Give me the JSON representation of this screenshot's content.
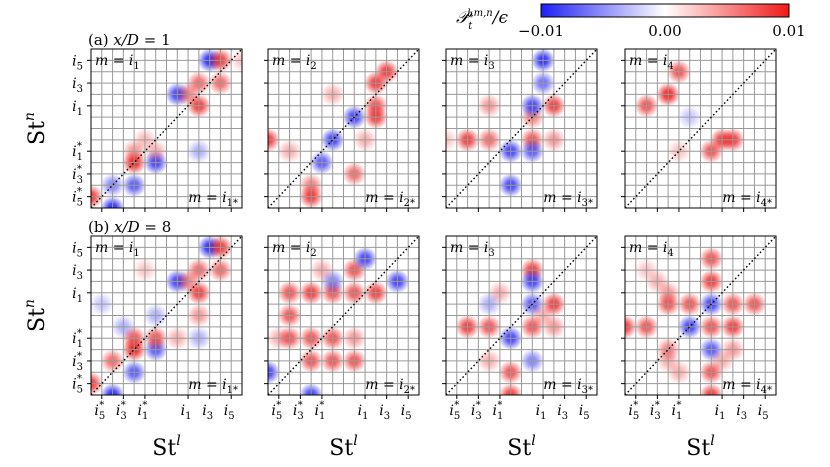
{
  "chart_data": {
    "type": "heatmap",
    "quantity_label": "𝒫",
    "quantity_sup": "l,m,n",
    "quantity_sub": "t",
    "quantity_suffix": "/ϵ",
    "colorbar": {
      "ticks": [
        "−0.01",
        "0.00",
        "0.01"
      ],
      "range": [
        -0.01,
        0.01
      ],
      "colors": {
        "negative": "#1f1ff5",
        "zero": "#ffffff",
        "positive": "#f01818"
      }
    },
    "tick_labels": [
      "i5*",
      "i3*",
      "i1*",
      "i1",
      "i3",
      "i5"
    ],
    "x_tick_main": [
      "i",
      "i",
      "i",
      "i",
      "i",
      "i"
    ],
    "x_tick_sub": [
      "5",
      "3",
      "1",
      "1",
      "3",
      "5"
    ],
    "x_tick_star": [
      true,
      true,
      true,
      false,
      false,
      false
    ],
    "y_tick_main": [
      "i",
      "i",
      "i",
      "i",
      "i",
      "i"
    ],
    "y_tick_sub": [
      "5",
      "3",
      "1",
      "1",
      "3",
      "5"
    ],
    "y_tick_star": [
      false,
      false,
      false,
      true,
      true,
      true
    ],
    "xlabel": "St",
    "xlabel_sup": "l",
    "ylabel": "St",
    "ylabel_sup": "n",
    "rows": [
      {
        "label": "(a) x/D = 1",
        "label_parts": [
          "(a) ",
          "x/D",
          " = 1"
        ],
        "panels": [
          {
            "top": "m = i",
            "top_sub": "1",
            "bottom": "m = i",
            "bottom_sub": "1*",
            "blobs": [
              [
                -3.5,
                -3,
                0.8
              ],
              [
                -2.5,
                -3.5,
                -0.9
              ],
              [
                -2.5,
                -2.5,
                -0.5
              ],
              [
                -1.5,
                -1.5,
                0.9
              ],
              [
                -1.5,
                -1,
                0.4
              ],
              [
                -1.5,
                -2.5,
                -0.7
              ],
              [
                -0.5,
                -1.5,
                -0.8
              ],
              [
                -0.5,
                -1,
                0.3
              ],
              [
                0.5,
                1.5,
                -0.8
              ],
              [
                1.5,
                1,
                0.8
              ],
              [
                1.5,
                2,
                0.6
              ],
              [
                1.5,
                -1,
                -0.3
              ],
              [
                2,
                3,
                -0.9
              ],
              [
                2.5,
                3,
                0.8
              ],
              [
                2.5,
                2,
                0.6
              ],
              [
                1,
                1.5,
                0.5
              ],
              [
                -1,
                -0.5,
                0.25
              ],
              [
                3.5,
                3,
                0.2
              ]
            ]
          },
          {
            "top": "m = i",
            "top_sub": "2",
            "bottom": "m = i",
            "bottom_sub": "2*",
            "blobs": [
              [
                -3.5,
                -0.5,
                0.8
              ],
              [
                -2.5,
                -1,
                0.3
              ],
              [
                -1.5,
                -2.5,
                0.5
              ],
              [
                -1.5,
                -3,
                0.8
              ],
              [
                -1,
                -1.5,
                -0.7
              ],
              [
                -0.5,
                -0.5,
                -0.8
              ],
              [
                0.5,
                0.5,
                -0.8
              ],
              [
                0.5,
                -2,
                0.6
              ],
              [
                1.5,
                0.5,
                0.8
              ],
              [
                1.5,
                1,
                0.7
              ],
              [
                2,
                2.5,
                0.8
              ],
              [
                1.5,
                2,
                0.8
              ],
              [
                1,
                -0.5,
                0.3
              ],
              [
                -0.5,
                1.5,
                0.3
              ]
            ]
          },
          {
            "top": "m = i",
            "top_sub": "3",
            "bottom": "m = i",
            "bottom_sub": "3*",
            "blobs": [
              [
                -2.5,
                -0.5,
                0.8
              ],
              [
                -1.5,
                -0.5,
                0.6
              ],
              [
                -0.5,
                -1,
                -0.8
              ],
              [
                -0.5,
                -2.5,
                -0.8
              ],
              [
                0.5,
                -0.5,
                0.7
              ],
              [
                0.5,
                0.5,
                0.5
              ],
              [
                0.5,
                -1,
                -0.7
              ],
              [
                1.5,
                1,
                0.8
              ],
              [
                0.5,
                1,
                -0.8
              ],
              [
                1,
                2,
                -0.6
              ],
              [
                1,
                3,
                -0.9
              ],
              [
                -1.5,
                1,
                0.4
              ],
              [
                1.5,
                -0.5,
                0.4
              ],
              [
                -3.5,
                -0.5,
                0.2
              ]
            ]
          },
          {
            "top": "m = i",
            "top_sub": "4",
            "bottom": "m = i",
            "bottom_sub": "4*",
            "blobs": [
              [
                -2.5,
                1,
                0.7
              ],
              [
                -1.5,
                1.5,
                0.9
              ],
              [
                -1,
                2.5,
                0.7
              ],
              [
                1,
                -0.5,
                0.8
              ],
              [
                1.5,
                -0.5,
                0.8
              ],
              [
                0.5,
                -1,
                0.7
              ],
              [
                -1,
                -1,
                0.2
              ],
              [
                -0.5,
                0.5,
                -0.2
              ]
            ]
          }
        ]
      },
      {
        "label": "(b) x/D = 8",
        "label_parts": [
          "(b) ",
          "x/D",
          " = 8"
        ],
        "panels": [
          {
            "top": "m = i",
            "top_sub": "1",
            "bottom": "m = i",
            "bottom_sub": "1*",
            "blobs": [
              [
                -3.5,
                -3,
                0.8
              ],
              [
                -2.5,
                -3.5,
                -0.9
              ],
              [
                -2.5,
                -2,
                0.6
              ],
              [
                -1.5,
                -1.5,
                0.9
              ],
              [
                -1.5,
                -1,
                0.7
              ],
              [
                -1.5,
                -2.5,
                -0.7
              ],
              [
                -0.5,
                -1.5,
                -0.7
              ],
              [
                -0.5,
                -1,
                0.7
              ],
              [
                0.5,
                1.5,
                -0.8
              ],
              [
                1.5,
                1,
                0.8
              ],
              [
                1.5,
                2,
                0.6
              ],
              [
                1.5,
                -1,
                -0.3
              ],
              [
                2,
                3,
                -0.9
              ],
              [
                2.5,
                3,
                0.8
              ],
              [
                2.5,
                2,
                0.6
              ],
              [
                1,
                1.5,
                0.5
              ],
              [
                -2,
                -0.5,
                -0.3
              ],
              [
                -1,
                2,
                0.2
              ],
              [
                -0.5,
                0,
                -0.3
              ],
              [
                0.5,
                -1,
                0.3
              ],
              [
                -3,
                0.5,
                -0.2
              ],
              [
                1.5,
                0,
                0.4
              ]
            ]
          },
          {
            "top": "m = i",
            "top_sub": "2",
            "bottom": "m = i",
            "bottom_sub": "2*",
            "blobs": [
              [
                -3.5,
                -2.5,
                -0.8
              ],
              [
                -2.5,
                -1,
                0.7
              ],
              [
                -2.5,
                0,
                0.7
              ],
              [
                -2.5,
                1,
                0.7
              ],
              [
                -1.5,
                1,
                0.8
              ],
              [
                -1.5,
                -1,
                0.7
              ],
              [
                -1.5,
                -2,
                0.7
              ],
              [
                -1.5,
                -3.5,
                -0.8
              ],
              [
                -0.5,
                1,
                0.7
              ],
              [
                -0.5,
                -2,
                0.7
              ],
              [
                -0.5,
                -1,
                0.7
              ],
              [
                -0.5,
                1.5,
                -0.5
              ],
              [
                0.5,
                1,
                0.7
              ],
              [
                0.5,
                2,
                0.7
              ],
              [
                1,
                2.5,
                -0.8
              ],
              [
                1.5,
                1,
                0.8
              ],
              [
                2.5,
                1.5,
                -0.8
              ],
              [
                0.5,
                -2,
                0.7
              ],
              [
                0.5,
                -1,
                0.4
              ],
              [
                -1,
                2,
                0.3
              ],
              [
                -3,
                -1,
                0.3
              ]
            ]
          },
          {
            "top": "m = i",
            "top_sub": "3",
            "bottom": "m = i",
            "bottom_sub": "3*",
            "blobs": [
              [
                -2.5,
                -0.5,
                0.8
              ],
              [
                -1.5,
                -0.5,
                0.7
              ],
              [
                -0.5,
                -1,
                -0.8
              ],
              [
                -0.5,
                -3.5,
                0.8
              ],
              [
                -0.5,
                -2.5,
                0.7
              ],
              [
                0.5,
                -0.5,
                0.7
              ],
              [
                0.5,
                0.5,
                -0.7
              ],
              [
                1.5,
                0.5,
                0.8
              ],
              [
                0.5,
                2,
                0.8
              ],
              [
                0.5,
                1.5,
                -0.8
              ],
              [
                1,
                0,
                0.3
              ],
              [
                -1.5,
                -2,
                0.3
              ],
              [
                -1,
                1,
                0.3
              ],
              [
                1.5,
                -0.5,
                0.4
              ],
              [
                -1.5,
                0.5,
                -0.3
              ],
              [
                0.5,
                -2,
                -0.5
              ]
            ]
          },
          {
            "top": "m = i",
            "top_sub": "4",
            "bottom": "m = i",
            "bottom_sub": "4*",
            "blobs": [
              [
                -3.5,
                -0.5,
                0.8
              ],
              [
                -2.5,
                -0.5,
                0.7
              ],
              [
                -1.5,
                0.5,
                0.7
              ],
              [
                -1.5,
                1,
                0.4
              ],
              [
                -0.5,
                -0.5,
                -0.8
              ],
              [
                -0.5,
                0.5,
                0.7
              ],
              [
                0.5,
                0.5,
                -0.8
              ],
              [
                0.5,
                1.5,
                0.8
              ],
              [
                0.5,
                2.5,
                0.7
              ],
              [
                0.5,
                -0.5,
                0.7
              ],
              [
                0.5,
                -1.5,
                -0.7
              ],
              [
                0.5,
                -2.5,
                0.7
              ],
              [
                0.5,
                -3.5,
                0.8
              ],
              [
                1.5,
                0.5,
                0.7
              ],
              [
                1.5,
                -0.5,
                0.8
              ],
              [
                1.5,
                -1.5,
                0.4
              ],
              [
                2.5,
                0.5,
                0.7
              ],
              [
                -1.5,
                -1.5,
                0.5
              ],
              [
                -1.5,
                -2,
                0.3
              ],
              [
                -2,
                1.5,
                0.3
              ],
              [
                1,
                -2,
                0.3
              ],
              [
                -1,
                -2.5,
                0.3
              ],
              [
                -2.5,
                2,
                0.2
              ]
            ]
          }
        ]
      }
    ]
  }
}
